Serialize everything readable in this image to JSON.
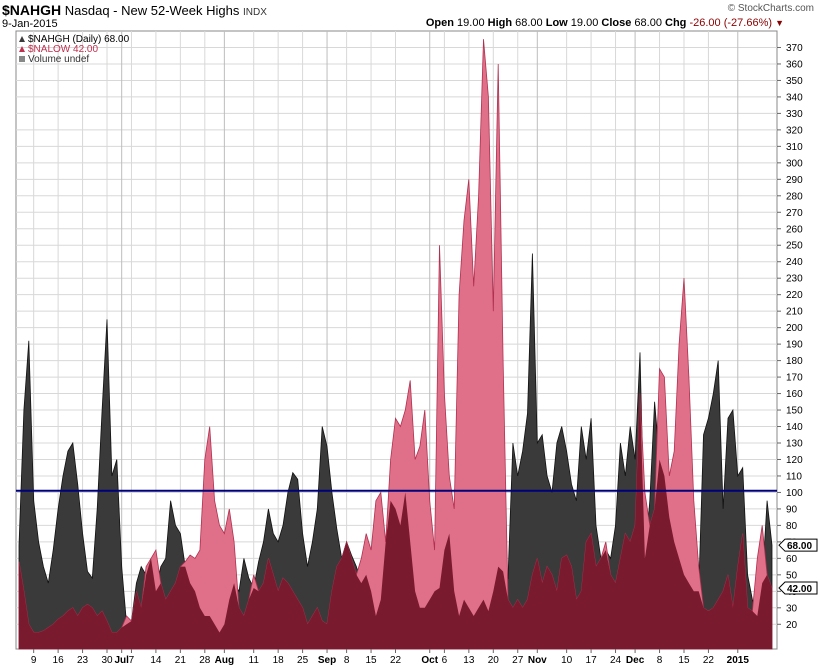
{
  "header": {
    "symbol": "$NAHGH",
    "description": "Nasdaq - New 52-Week Highs",
    "exchange": "INDX",
    "date": "9-Jan-2015",
    "brand": "© StockCharts.com",
    "open_label": "Open",
    "open_value": "19.00",
    "high_label": "High",
    "high_value": "68.00",
    "low_label": "Low",
    "low_value": "19.00",
    "close_label": "Close",
    "close_value": "68.00",
    "chg_label": "Chg",
    "chg_value": "-26.00 (-27.66%)",
    "chg_arrow": "▼"
  },
  "legend": {
    "series1": "$NAHGH (Daily) 68.00",
    "series2": "$NALOW 42.00",
    "volume": "Volume undef"
  },
  "colors": {
    "highs_fill": "#3a3a3a",
    "lows_fill": "#e07089",
    "overlap_fill": "#7a1a2e",
    "hline": "#00007a",
    "grid": "#d8d8d8"
  },
  "chart_data": {
    "type": "area",
    "ylim": [
      5,
      380
    ],
    "yticks": [
      20,
      30,
      40,
      50,
      60,
      70,
      80,
      90,
      100,
      110,
      120,
      130,
      140,
      150,
      160,
      170,
      180,
      190,
      200,
      210,
      220,
      230,
      240,
      250,
      260,
      270,
      280,
      290,
      300,
      310,
      320,
      330,
      340,
      350,
      360,
      370
    ],
    "xticks": [
      {
        "i": 3,
        "label": "9",
        "bold": false
      },
      {
        "i": 8,
        "label": "16",
        "bold": false
      },
      {
        "i": 13,
        "label": "23",
        "bold": false
      },
      {
        "i": 18,
        "label": "30",
        "bold": false
      },
      {
        "i": 21,
        "label": "Jul",
        "bold": true
      },
      {
        "i": 23,
        "label": "7",
        "bold": false
      },
      {
        "i": 28,
        "label": "14",
        "bold": false
      },
      {
        "i": 33,
        "label": "21",
        "bold": false
      },
      {
        "i": 38,
        "label": "28",
        "bold": false
      },
      {
        "i": 42,
        "label": "Aug",
        "bold": true
      },
      {
        "i": 48,
        "label": "11",
        "bold": false
      },
      {
        "i": 53,
        "label": "18",
        "bold": false
      },
      {
        "i": 58,
        "label": "25",
        "bold": false
      },
      {
        "i": 63,
        "label": "Sep",
        "bold": true
      },
      {
        "i": 67,
        "label": "8",
        "bold": false
      },
      {
        "i": 72,
        "label": "15",
        "bold": false
      },
      {
        "i": 77,
        "label": "22",
        "bold": false
      },
      {
        "i": 84,
        "label": "Oct",
        "bold": true
      },
      {
        "i": 87,
        "label": "6",
        "bold": false
      },
      {
        "i": 92,
        "label": "13",
        "bold": false
      },
      {
        "i": 97,
        "label": "20",
        "bold": false
      },
      {
        "i": 102,
        "label": "27",
        "bold": false
      },
      {
        "i": 106,
        "label": "Nov",
        "bold": true
      },
      {
        "i": 112,
        "label": "10",
        "bold": false
      },
      {
        "i": 117,
        "label": "17",
        "bold": false
      },
      {
        "i": 122,
        "label": "24",
        "bold": false
      },
      {
        "i": 126,
        "label": "Dec",
        "bold": true
      },
      {
        "i": 131,
        "label": "8",
        "bold": false
      },
      {
        "i": 136,
        "label": "15",
        "bold": false
      },
      {
        "i": 141,
        "label": "22",
        "bold": false
      },
      {
        "i": 147,
        "label": "2015",
        "bold": true
      }
    ],
    "hline": 101,
    "series": [
      {
        "name": "$NAHGH",
        "end_label": "68.00",
        "values": [
          68,
          150,
          192,
          95,
          70,
          55,
          45,
          65,
          90,
          110,
          125,
          130,
          105,
          75,
          52,
          48,
          90,
          150,
          205,
          110,
          120,
          55,
          20,
          22,
          45,
          55,
          50,
          60,
          40,
          55,
          60,
          95,
          80,
          75,
          55,
          45,
          40,
          30,
          25,
          25,
          20,
          15,
          20,
          35,
          45,
          40,
          60,
          48,
          42,
          58,
          70,
          90,
          75,
          70,
          80,
          100,
          112,
          108,
          75,
          55,
          70,
          90,
          140,
          128,
          100,
          78,
          60,
          70,
          62,
          55,
          45,
          50,
          40,
          25,
          35,
          70,
          95,
          90,
          80,
          100,
          70,
          40,
          30,
          30,
          35,
          40,
          42,
          65,
          75,
          40,
          25,
          35,
          30,
          25,
          30,
          35,
          28,
          40,
          55,
          52,
          48,
          130,
          110,
          125,
          148,
          245,
          130,
          135,
          110,
          100,
          130,
          140,
          125,
          105,
          95,
          140,
          120,
          145,
          80,
          60,
          65,
          60,
          80,
          130,
          110,
          140,
          120,
          185,
          60,
          95,
          155,
          120,
          110,
          85,
          70,
          60,
          50,
          45,
          40,
          40,
          135,
          145,
          160,
          180,
          90,
          145,
          150,
          110,
          115,
          50,
          35,
          25,
          45,
          95,
          68
        ]
      },
      {
        "name": "$NALOW",
        "end_label": "42.00",
        "values": [
          58,
          40,
          20,
          15,
          15,
          16,
          18,
          20,
          23,
          25,
          28,
          30,
          25,
          30,
          32,
          30,
          25,
          28,
          22,
          15,
          15,
          18,
          25,
          22,
          40,
          30,
          55,
          60,
          65,
          45,
          35,
          40,
          45,
          55,
          58,
          62,
          60,
          65,
          120,
          140,
          95,
          80,
          75,
          90,
          70,
          30,
          25,
          35,
          50,
          40,
          45,
          60,
          50,
          40,
          48,
          45,
          40,
          35,
          30,
          20,
          25,
          30,
          22,
          20,
          40,
          55,
          60,
          70,
          60,
          50,
          60,
          75,
          65,
          95,
          100,
          70,
          120,
          145,
          140,
          150,
          168,
          120,
          128,
          150,
          95,
          65,
          250,
          160,
          110,
          90,
          220,
          265,
          290,
          225,
          280,
          375,
          340,
          210,
          360,
          180,
          35,
          30,
          35,
          30,
          35,
          50,
          60,
          45,
          55,
          50,
          40,
          60,
          62,
          55,
          35,
          40,
          70,
          75,
          55,
          60,
          70,
          50,
          45,
          60,
          75,
          70,
          80,
          160,
          100,
          80,
          90,
          175,
          170,
          110,
          125,
          190,
          230,
          170,
          95,
          55,
          30,
          28,
          30,
          35,
          40,
          50,
          30,
          55,
          75,
          30,
          28,
          60,
          80,
          50,
          42
        ]
      }
    ]
  }
}
